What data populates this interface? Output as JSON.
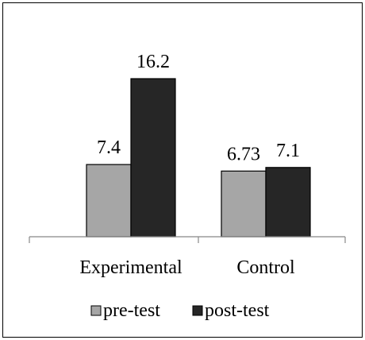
{
  "chart_data": {
    "type": "bar",
    "title": "",
    "xlabel": "",
    "ylabel": "",
    "categories": [
      "Experimental",
      "Control"
    ],
    "series": [
      {
        "name": "pre-test",
        "color": "#a6a6a6",
        "values": [
          7.4,
          6.73
        ]
      },
      {
        "name": "post-test",
        "color": "#262626",
        "values": [
          16.2,
          7.1
        ]
      }
    ],
    "data_labels": [
      [
        "7.4",
        "16.2"
      ],
      [
        "6.73",
        "7.1"
      ]
    ],
    "ylim": [
      0,
      18.4
    ],
    "grid": false,
    "legend_position": "bottom"
  }
}
